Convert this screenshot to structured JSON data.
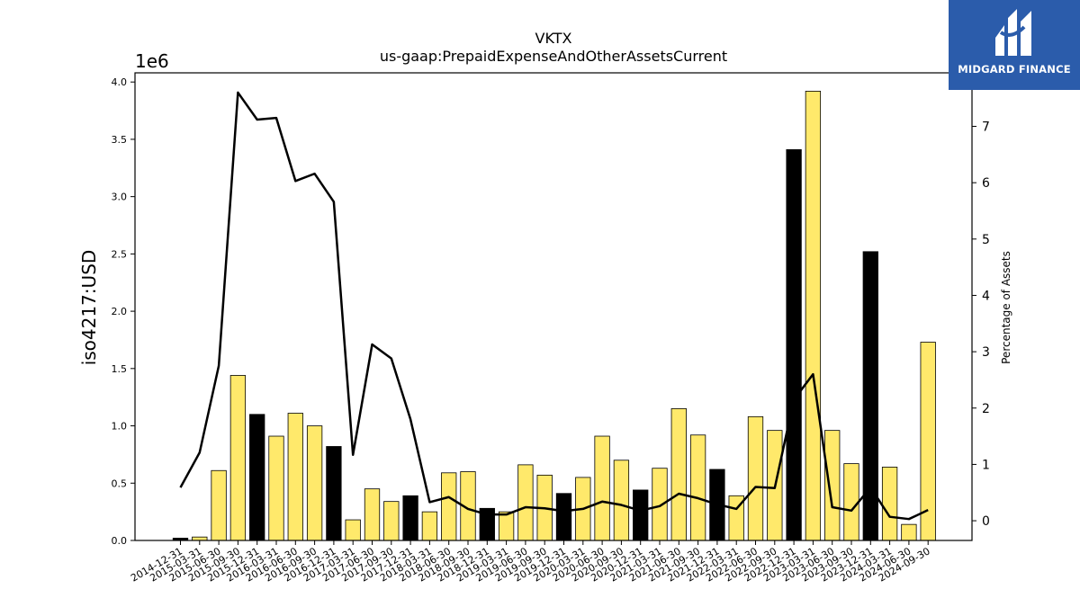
{
  "chart_data": {
    "type": "bar",
    "title": "VKTX",
    "subtitle": "us-gaap:PrepaidExpenseAndOtherAssetsCurrent",
    "ylabel": "iso4217:USD",
    "y_offset_label": "1e6",
    "y2label": "Percentage of Assets",
    "ylim": [
      0,
      4.08
    ],
    "y_scale_factor": 1000000,
    "y2lim": [
      -0.35,
      7.95
    ],
    "yticks": [
      "0.0",
      "0.5",
      "1.0",
      "1.5",
      "2.0",
      "2.5",
      "3.0",
      "3.5",
      "4.0"
    ],
    "y2ticks": [
      "0",
      "1",
      "2",
      "3",
      "4",
      "5",
      "6",
      "7"
    ],
    "colors": {
      "q4_bar": "#000000",
      "other_bar": "#ffe96b",
      "line": "#000000"
    },
    "categories": [
      "2014-12-31",
      "2015-03-31",
      "2015-06-30",
      "2015-09-30",
      "2015-12-31",
      "2016-03-31",
      "2016-06-30",
      "2016-09-30",
      "2016-12-31",
      "2017-03-31",
      "2017-06-30",
      "2017-09-30",
      "2017-12-31",
      "2018-03-31",
      "2018-06-30",
      "2018-09-30",
      "2018-12-31",
      "2019-03-31",
      "2019-06-30",
      "2019-09-30",
      "2019-12-31",
      "2020-03-31",
      "2020-06-30",
      "2020-09-30",
      "2020-12-31",
      "2021-03-31",
      "2021-06-30",
      "2021-09-30",
      "2021-12-31",
      "2022-03-31",
      "2022-06-30",
      "2022-09-30",
      "2022-12-31",
      "2023-03-31",
      "2023-06-30",
      "2023-09-30",
      "2023-12-31",
      "2024-03-31",
      "2024-06-30",
      "2024-09-30"
    ],
    "series": [
      {
        "type": "bar",
        "values": [
          0.02,
          0.03,
          0.61,
          1.44,
          1.1,
          0.91,
          1.11,
          1.0,
          0.82,
          0.18,
          0.45,
          0.34,
          0.39,
          0.25,
          0.59,
          0.6,
          0.28,
          0.25,
          0.66,
          0.57,
          0.41,
          0.55,
          0.91,
          0.7,
          0.44,
          0.63,
          1.15,
          0.92,
          0.62,
          0.39,
          1.08,
          0.96,
          3.41,
          3.92,
          0.96,
          0.67,
          2.52,
          0.64,
          0.14,
          1.73
        ]
      },
      {
        "type": "line",
        "axis": "right",
        "values": [
          0.59,
          1.21,
          2.75,
          7.6,
          7.12,
          7.15,
          6.03,
          6.16,
          5.66,
          1.17,
          3.13,
          2.88,
          1.8,
          0.33,
          0.42,
          0.21,
          0.11,
          0.11,
          0.24,
          0.22,
          0.17,
          0.21,
          0.34,
          0.28,
          0.18,
          0.26,
          0.48,
          0.4,
          0.29,
          0.21,
          0.6,
          0.58,
          2.15,
          2.6,
          0.24,
          0.18,
          0.59,
          0.07,
          0.03,
          0.19
        ]
      }
    ]
  },
  "logo": {
    "name": "mountain-logo-icon",
    "text": "MIDGARD FINANCE"
  }
}
